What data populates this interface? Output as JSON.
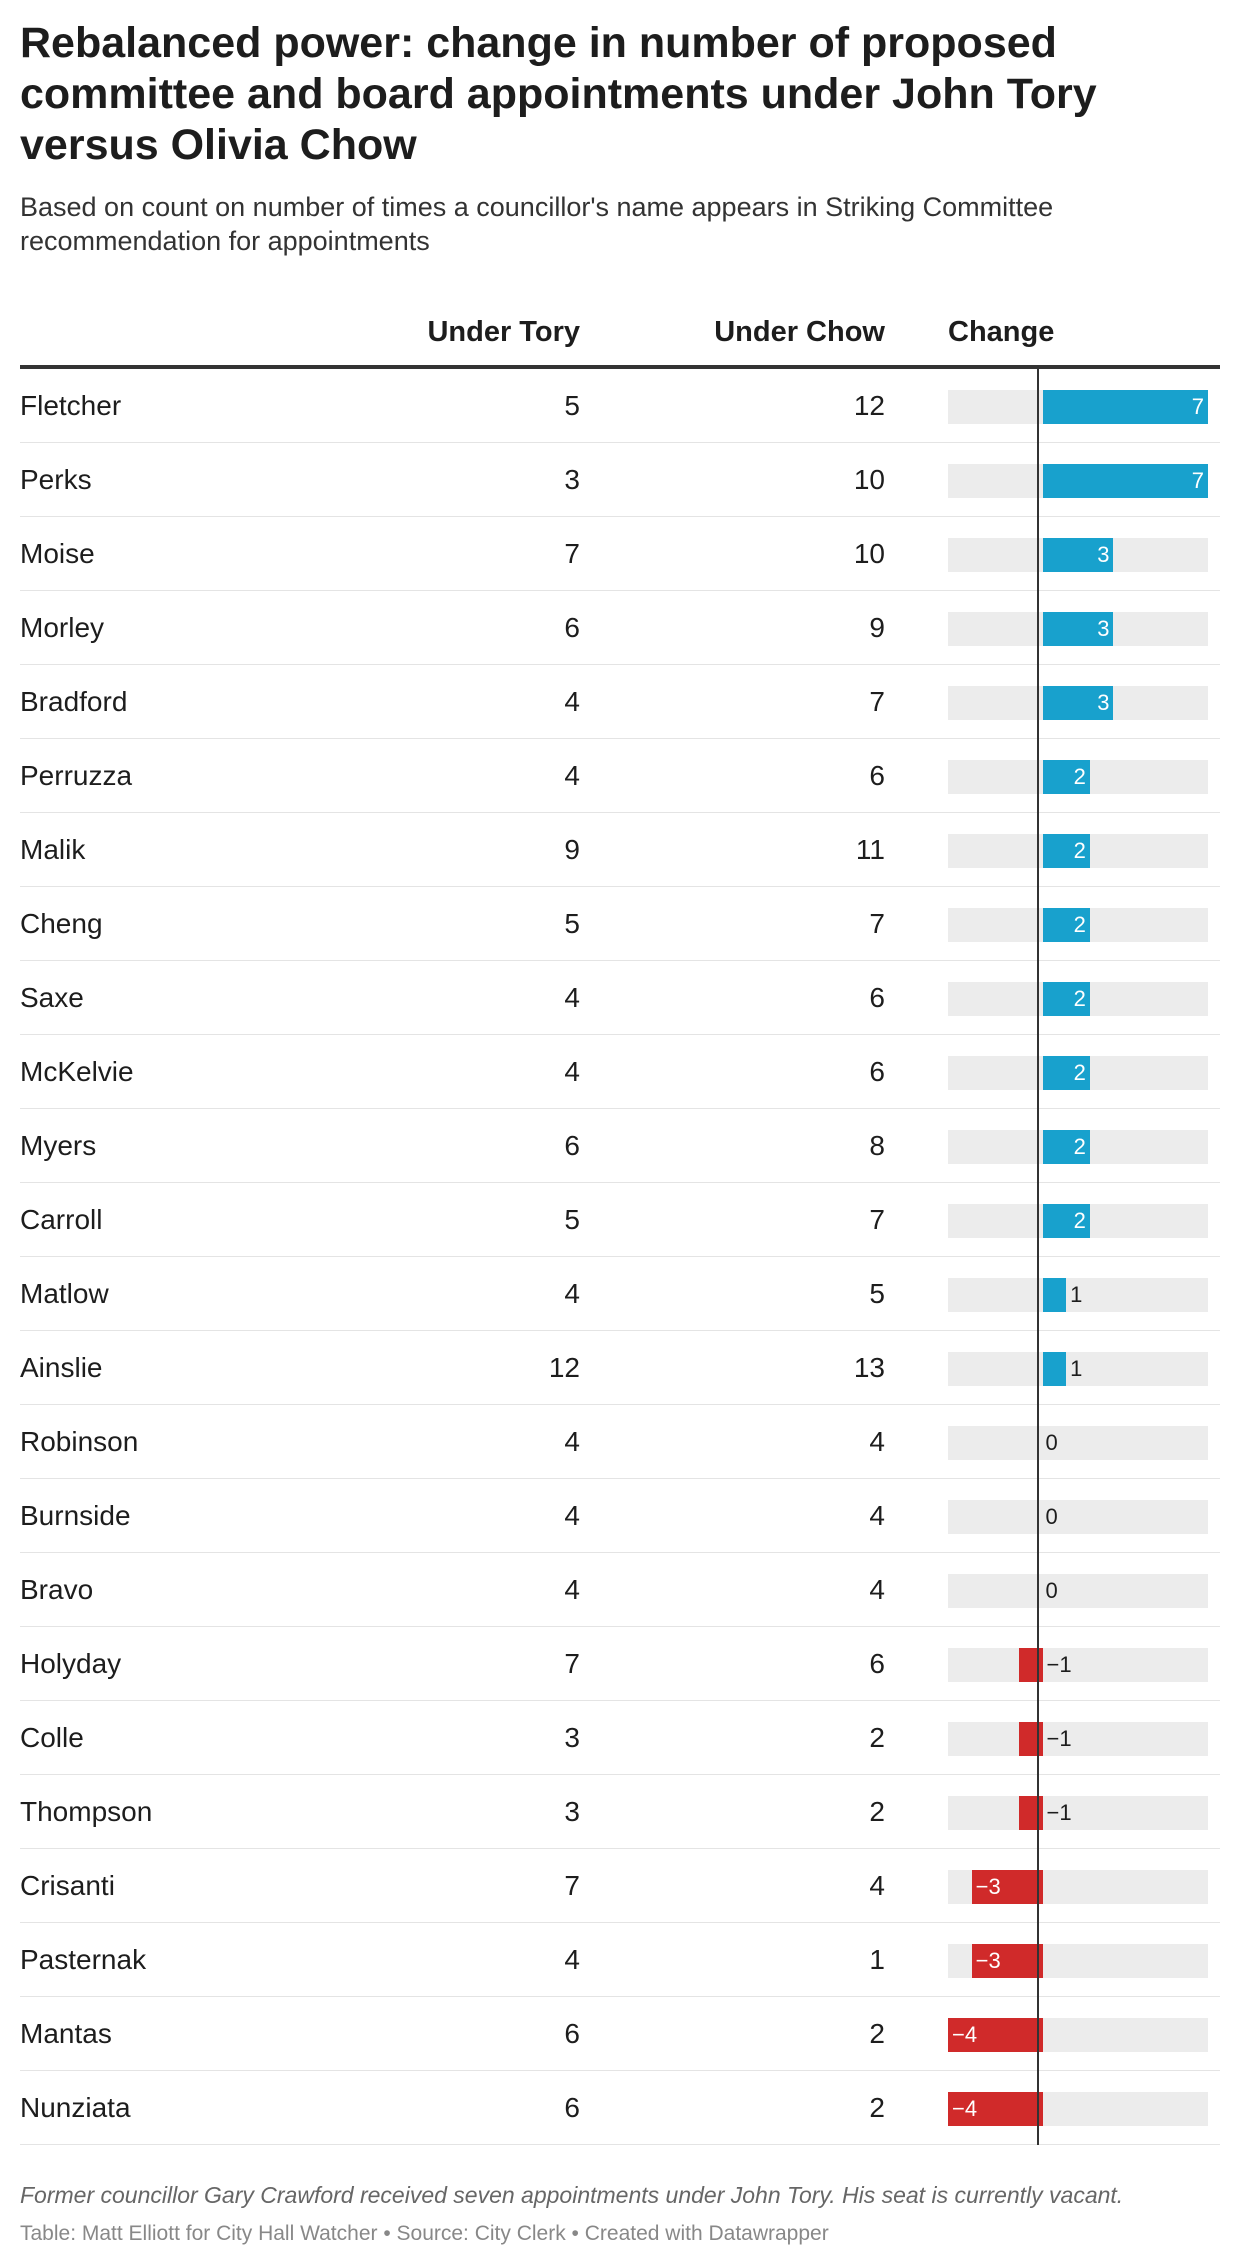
{
  "title": "Rebalanced power: change in number of proposed committee and board appointments under John Tory versus Olivia Chow",
  "subtitle": "Based on count on number of times a councillor's name appears in Striking Committee recommendation for appointments",
  "headers": {
    "tory": "Under Tory",
    "chow": "Under Chow",
    "change": "Change"
  },
  "note": "Former councillor Gary Crawford received seven appointments under John Tory. His seat is currently vacant.",
  "source": "Table: Matt Elliott for City Hall Watcher • Source: City Clerk • Created with Datawrapper",
  "colors": {
    "positive": "#18a1cd",
    "negative": "#d02a2a",
    "track": "#ececec"
  },
  "chart_data": {
    "type": "table",
    "columns": [
      "Under Tory",
      "Under Chow",
      "Change"
    ],
    "change_range": [
      -4,
      7
    ],
    "rows": [
      {
        "name": "Fletcher",
        "tory": 5,
        "chow": 12,
        "change": 7,
        "change_label": "7"
      },
      {
        "name": "Perks",
        "tory": 3,
        "chow": 10,
        "change": 7,
        "change_label": "7"
      },
      {
        "name": "Moise",
        "tory": 7,
        "chow": 10,
        "change": 3,
        "change_label": "3"
      },
      {
        "name": "Morley",
        "tory": 6,
        "chow": 9,
        "change": 3,
        "change_label": "3"
      },
      {
        "name": "Bradford",
        "tory": 4,
        "chow": 7,
        "change": 3,
        "change_label": "3"
      },
      {
        "name": "Perruzza",
        "tory": 4,
        "chow": 6,
        "change": 2,
        "change_label": "2"
      },
      {
        "name": "Malik",
        "tory": 9,
        "chow": 11,
        "change": 2,
        "change_label": "2"
      },
      {
        "name": "Cheng",
        "tory": 5,
        "chow": 7,
        "change": 2,
        "change_label": "2"
      },
      {
        "name": "Saxe",
        "tory": 4,
        "chow": 6,
        "change": 2,
        "change_label": "2"
      },
      {
        "name": "McKelvie",
        "tory": 4,
        "chow": 6,
        "change": 2,
        "change_label": "2"
      },
      {
        "name": "Myers",
        "tory": 6,
        "chow": 8,
        "change": 2,
        "change_label": "2"
      },
      {
        "name": "Carroll",
        "tory": 5,
        "chow": 7,
        "change": 2,
        "change_label": "2"
      },
      {
        "name": "Matlow",
        "tory": 4,
        "chow": 5,
        "change": 1,
        "change_label": "1"
      },
      {
        "name": "Ainslie",
        "tory": 12,
        "chow": 13,
        "change": 1,
        "change_label": "1"
      },
      {
        "name": "Robinson",
        "tory": 4,
        "chow": 4,
        "change": 0,
        "change_label": "0"
      },
      {
        "name": "Burnside",
        "tory": 4,
        "chow": 4,
        "change": 0,
        "change_label": "0"
      },
      {
        "name": "Bravo",
        "tory": 4,
        "chow": 4,
        "change": 0,
        "change_label": "0"
      },
      {
        "name": "Holyday",
        "tory": 7,
        "chow": 6,
        "change": -1,
        "change_label": "−1"
      },
      {
        "name": "Colle",
        "tory": 3,
        "chow": 2,
        "change": -1,
        "change_label": "−1"
      },
      {
        "name": "Thompson",
        "tory": 3,
        "chow": 2,
        "change": -1,
        "change_label": "−1"
      },
      {
        "name": "Crisanti",
        "tory": 7,
        "chow": 4,
        "change": -3,
        "change_label": "−3"
      },
      {
        "name": "Pasternak",
        "tory": 4,
        "chow": 1,
        "change": -3,
        "change_label": "−3"
      },
      {
        "name": "Mantas",
        "tory": 6,
        "chow": 2,
        "change": -4,
        "change_label": "−4"
      },
      {
        "name": "Nunziata",
        "tory": 6,
        "chow": 2,
        "change": -4,
        "change_label": "−4"
      }
    ]
  }
}
